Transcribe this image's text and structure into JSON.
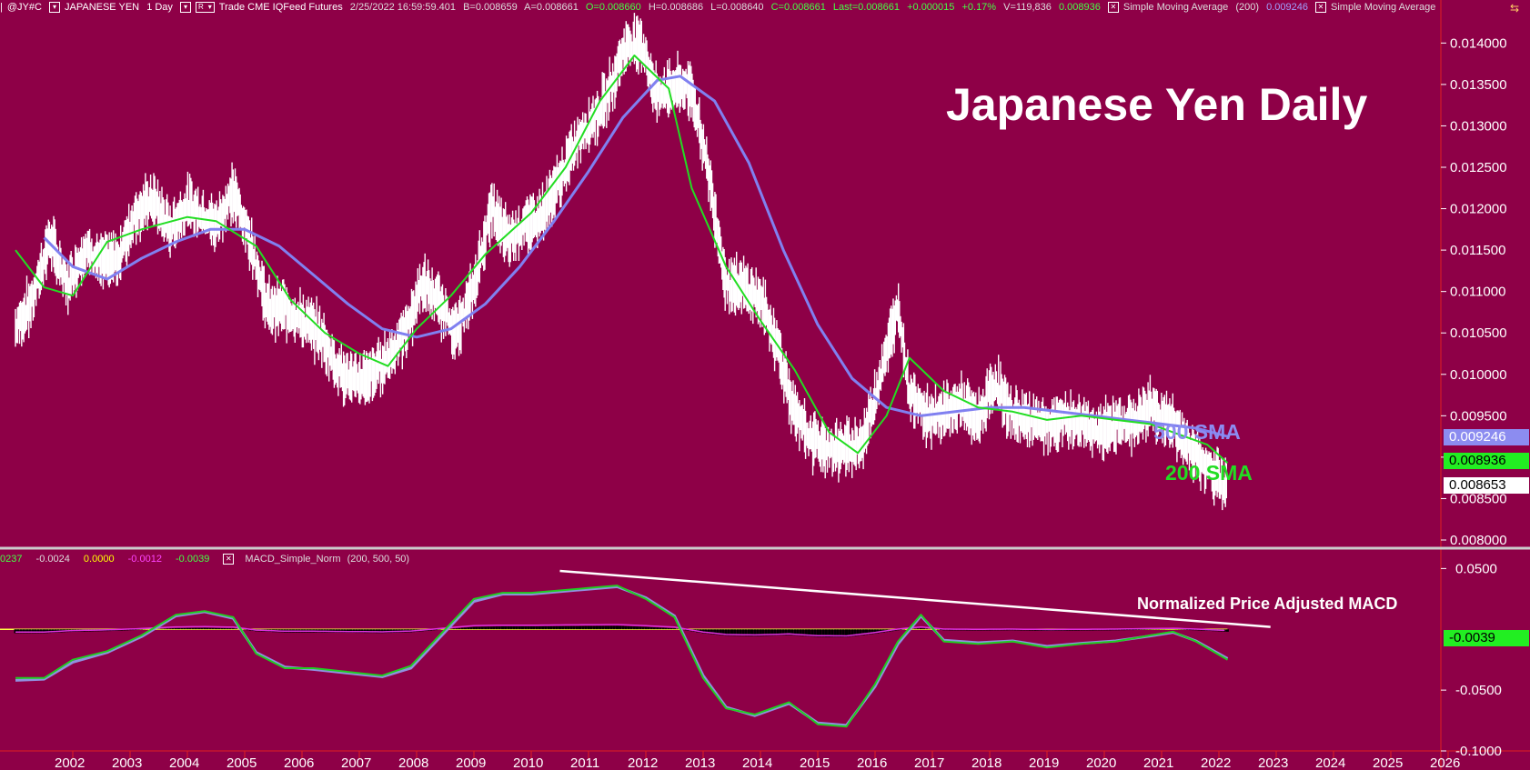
{
  "header": {
    "symbol": "@JY#C",
    "symbol_prefix": "|",
    "name": "JAPANESE YEN",
    "interval": "1 Day",
    "mode_box": "R",
    "info": "Trade  CME  IQFeed  Futures",
    "datetime": "2/25/2022  16:59:59.401",
    "bid": "B=0.008659",
    "ask": "A=0.008661",
    "open": "O=0.008660",
    "high": "H=0.008686",
    "low": "L=0.008640",
    "close": "C=0.008661",
    "last": "Last=0.008661",
    "change": "+0.000015",
    "change_pct": "+0.17%",
    "volume": "V=119,836",
    "sma1_value": "0.008936",
    "sma1_label": "Simple Moving Average",
    "sma2_params": "(200)",
    "sma2_value": "0.009246",
    "sma2_label": "Simple Moving Average"
  },
  "macd_header": {
    "v0": "0237",
    "v1": "-0.0024",
    "v2": "0.0000",
    "v3": "-0.0012",
    "v4": "-0.0039",
    "name": "MACD_Simple_Norm",
    "params": "(200,  500,  50)"
  },
  "annotations": {
    "title": "Japanese Yen Daily",
    "macd_title": "Normalized Price Adjusted MACD",
    "sma500_label": "500 SMA",
    "sma200_label": "200 SMA"
  },
  "price_tags": {
    "sma500": "0.009246",
    "sma200": "0.008936",
    "last": "0.008653",
    "macd": "-0.0039"
  },
  "colors": {
    "background": "#8e0047",
    "price": "#ffffff",
    "sma200": "#22dd22",
    "sma500": "#8080f0",
    "macd_line": "#22cc22",
    "macd_signal": "#9090e0",
    "macd_magenta": "#e030e0",
    "grid_red": "#e02020"
  },
  "chart_data": [
    {
      "type": "line",
      "title": "Japanese Yen Daily",
      "ylim": [
        0.008,
        0.0143
      ],
      "y_ticks": [
        "0.008000",
        "0.008500",
        "0.009000",
        "0.009500",
        "0.010000",
        "0.010500",
        "0.011000",
        "0.011500",
        "0.012000",
        "0.012500",
        "0.013000",
        "0.013500",
        "0.014000"
      ],
      "x_ticks": [
        "2002",
        "2003",
        "2004",
        "2005",
        "2006",
        "2007",
        "2008",
        "2009",
        "2010",
        "2011",
        "2012",
        "2013",
        "2014",
        "2015",
        "2016",
        "2017",
        "2018",
        "2019",
        "2020",
        "2021",
        "2022",
        "2023",
        "2024",
        "2025",
        "2026"
      ],
      "series": [
        {
          "name": "Price",
          "x": [
            2001.0,
            2001.3,
            2001.6,
            2001.9,
            2002.2,
            2002.5,
            2002.8,
            2003.1,
            2003.4,
            2003.7,
            2004.0,
            2004.2,
            2004.5,
            2004.8,
            2005.1,
            2005.4,
            2005.7,
            2006.0,
            2006.3,
            2006.6,
            2006.9,
            2007.2,
            2007.5,
            2007.8,
            2008.1,
            2008.4,
            2008.7,
            2009.0,
            2009.3,
            2009.6,
            2009.9,
            2010.2,
            2010.5,
            2010.8,
            2011.1,
            2011.3,
            2011.6,
            2011.9,
            2012.2,
            2012.5,
            2012.8,
            2013.1,
            2013.4,
            2013.7,
            2014.0,
            2014.3,
            2014.6,
            2014.9,
            2015.2,
            2015.5,
            2015.8,
            2016.1,
            2016.4,
            2016.6,
            2016.9,
            2017.2,
            2017.5,
            2017.8,
            2018.1,
            2018.4,
            2018.7,
            2019.0,
            2019.3,
            2019.6,
            2019.9,
            2020.2,
            2020.5,
            2020.8,
            2021.1,
            2021.4,
            2021.7,
            2022.0,
            2022.15
          ],
          "values": [
            0.01055,
            0.0109,
            0.01165,
            0.01105,
            0.0115,
            0.01135,
            0.0114,
            0.01195,
            0.0121,
            0.01175,
            0.01205,
            0.01195,
            0.0118,
            0.0122,
            0.0116,
            0.0108,
            0.0108,
            0.01065,
            0.0105,
            0.0101,
            0.0099,
            0.01,
            0.0102,
            0.0105,
            0.0111,
            0.01085,
            0.0105,
            0.01105,
            0.012,
            0.01165,
            0.0118,
            0.01195,
            0.01235,
            0.0128,
            0.0131,
            0.0133,
            0.0139,
            0.01405,
            0.01335,
            0.0135,
            0.01345,
            0.0124,
            0.0111,
            0.01105,
            0.0109,
            0.01035,
            0.0095,
            0.0092,
            0.0091,
            0.0091,
            0.0092,
            0.01,
            0.0108,
            0.0098,
            0.0095,
            0.00955,
            0.00965,
            0.00945,
            0.0099,
            0.0095,
            0.00945,
            0.00935,
            0.00945,
            0.0094,
            0.0093,
            0.0094,
            0.0094,
            0.0096,
            0.00945,
            0.0092,
            0.0089,
            0.00875,
            0.00865
          ]
        },
        {
          "name": "200 SMA",
          "x": [
            2001.0,
            2001.5,
            2002.0,
            2002.6,
            2003.2,
            2004.0,
            2004.5,
            2005.2,
            2005.8,
            2006.4,
            2007.0,
            2007.5,
            2008.0,
            2008.6,
            2009.2,
            2010.0,
            2010.6,
            2011.2,
            2011.8,
            2012.4,
            2012.8,
            2013.4,
            2014.0,
            2014.6,
            2015.2,
            2015.7,
            2016.2,
            2016.6,
            2017.2,
            2017.8,
            2018.4,
            2019.0,
            2019.6,
            2020.2,
            2020.8,
            2021.4,
            2021.8,
            2022.15
          ],
          "values": [
            0.0115,
            0.01105,
            0.01095,
            0.0116,
            0.01175,
            0.0119,
            0.01185,
            0.01155,
            0.0109,
            0.0105,
            0.01025,
            0.0101,
            0.01055,
            0.01095,
            0.01145,
            0.01195,
            0.0125,
            0.0133,
            0.01385,
            0.01345,
            0.01225,
            0.0113,
            0.01065,
            0.01005,
            0.0093,
            0.00905,
            0.0095,
            0.0102,
            0.0098,
            0.0096,
            0.00955,
            0.00945,
            0.0095,
            0.00945,
            0.0094,
            0.00925,
            0.00915,
            0.00893
          ]
        },
        {
          "name": "500 SMA",
          "x": [
            2001.5,
            2002.0,
            2002.6,
            2003.2,
            2003.8,
            2004.4,
            2005.0,
            2005.6,
            2006.2,
            2006.8,
            2007.4,
            2008.0,
            2008.6,
            2009.2,
            2009.8,
            2010.4,
            2011.0,
            2011.6,
            2012.2,
            2012.6,
            2013.2,
            2013.8,
            2014.4,
            2015.0,
            2015.6,
            2016.2,
            2016.8,
            2017.4,
            2018.0,
            2018.6,
            2019.2,
            2019.8,
            2020.4,
            2021.0,
            2021.6,
            2022.15
          ],
          "values": [
            0.01165,
            0.0113,
            0.01115,
            0.0114,
            0.0116,
            0.01175,
            0.01175,
            0.01155,
            0.0112,
            0.01085,
            0.01055,
            0.01045,
            0.01055,
            0.01085,
            0.0113,
            0.01185,
            0.01245,
            0.0131,
            0.01355,
            0.0136,
            0.0133,
            0.01255,
            0.0115,
            0.0106,
            0.00995,
            0.0096,
            0.0095,
            0.00955,
            0.0096,
            0.0096,
            0.00955,
            0.0095,
            0.00945,
            0.0094,
            0.00935,
            0.00925
          ]
        }
      ]
    },
    {
      "type": "line",
      "title": "Normalized Price Adjusted MACD",
      "ylim": [
        -0.1,
        0.06
      ],
      "y_ticks": [
        "0.0500",
        "-0.0500",
        "-0.1000"
      ],
      "series": [
        {
          "name": "MACD",
          "x": [
            2001.0,
            2001.5,
            2002.0,
            2002.6,
            2003.2,
            2003.8,
            2004.3,
            2004.8,
            2005.2,
            2005.7,
            2006.2,
            2006.8,
            2007.4,
            2007.9,
            2008.4,
            2009.0,
            2009.5,
            2010.0,
            2010.5,
            2011.0,
            2011.5,
            2012.0,
            2012.5,
            2013.0,
            2013.4,
            2013.9,
            2014.5,
            2015.0,
            2015.5,
            2016.0,
            2016.4,
            2016.8,
            2017.2,
            2017.8,
            2018.4,
            2019.0,
            2019.6,
            2020.2,
            2020.8,
            2021.2,
            2021.6,
            2022.15
          ],
          "values": [
            -0.04,
            -0.04,
            -0.025,
            -0.018,
            -0.005,
            0.012,
            0.015,
            0.01,
            -0.02,
            -0.032,
            -0.032,
            -0.035,
            -0.038,
            -0.03,
            -0.005,
            0.025,
            0.03,
            0.03,
            0.032,
            0.034,
            0.036,
            0.025,
            0.01,
            -0.04,
            -0.065,
            -0.07,
            -0.06,
            -0.078,
            -0.08,
            -0.045,
            -0.01,
            0.012,
            -0.01,
            -0.012,
            -0.01,
            -0.015,
            -0.012,
            -0.01,
            -0.005,
            -0.002,
            -0.01,
            -0.025
          ]
        },
        {
          "name": "Signal",
          "x": [
            2001.0,
            2001.5,
            2002.0,
            2002.6,
            2003.2,
            2003.8,
            2004.3,
            2004.8,
            2005.2,
            2005.7,
            2006.2,
            2006.8,
            2007.4,
            2007.9,
            2008.4,
            2009.0,
            2009.5,
            2010.0,
            2010.5,
            2011.0,
            2011.5,
            2012.0,
            2012.5,
            2013.0,
            2013.4,
            2013.9,
            2014.5,
            2015.0,
            2015.5,
            2016.0,
            2016.4,
            2016.8,
            2017.2,
            2017.8,
            2018.4,
            2019.0,
            2019.6,
            2020.2,
            2020.8,
            2021.2,
            2021.6,
            2022.15
          ],
          "values": [
            -0.042,
            -0.041,
            -0.027,
            -0.019,
            -0.006,
            0.011,
            0.0145,
            0.009,
            -0.019,
            -0.031,
            -0.033,
            -0.036,
            -0.039,
            -0.032,
            -0.007,
            0.023,
            0.029,
            0.029,
            0.031,
            0.033,
            0.035,
            0.026,
            0.011,
            -0.038,
            -0.064,
            -0.071,
            -0.061,
            -0.077,
            -0.079,
            -0.047,
            -0.012,
            0.011,
            -0.009,
            -0.011,
            -0.0095,
            -0.014,
            -0.0115,
            -0.0095,
            -0.0055,
            -0.0025,
            -0.0095,
            -0.024
          ]
        },
        {
          "name": "Trendline",
          "x": [
            2010.5,
            2022.9
          ],
          "values": [
            0.048,
            0.002
          ]
        }
      ]
    }
  ]
}
